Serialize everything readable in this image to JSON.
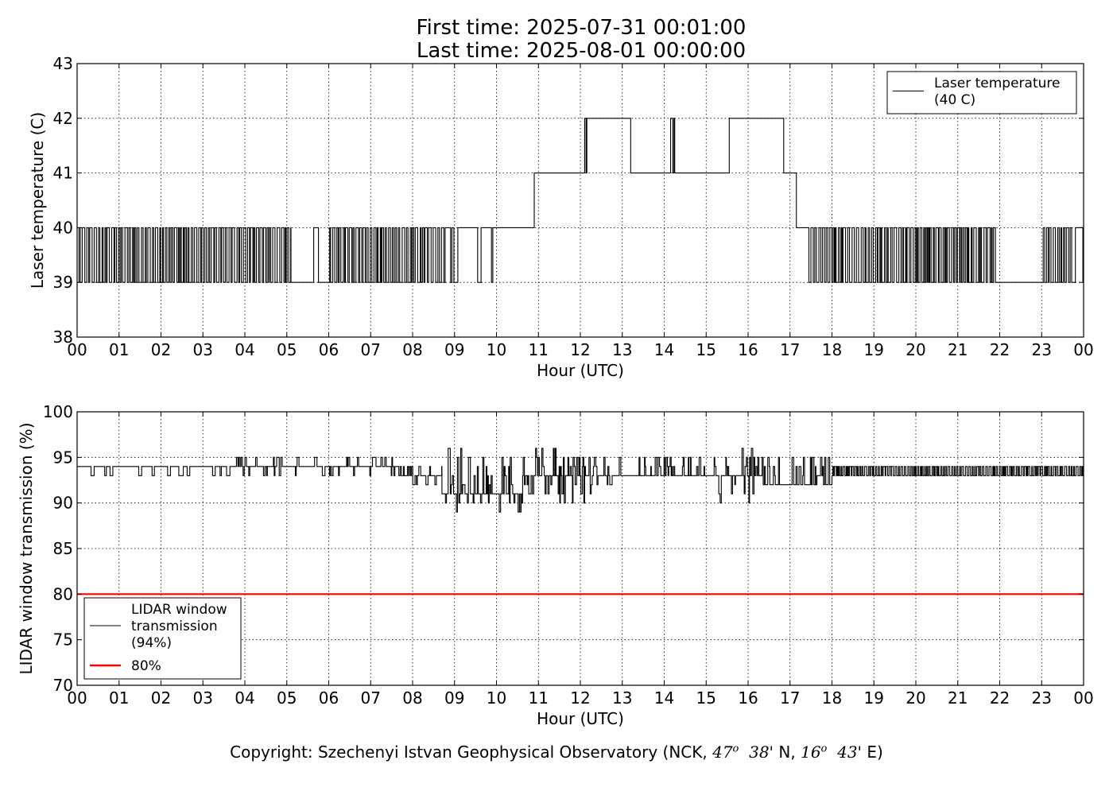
{
  "title_line1": "First time: 2025-07-31 00:01:00",
  "title_line2": "Last time: 2025-08-01 00:00:00",
  "footer": {
    "prefix": "Copyright: Szechenyi Istvan Geophysical Observatory (NCK, ",
    "lat_deg": "47",
    "lat_sup": "o",
    "lat_min": "38'",
    "lat_hem": " N, ",
    "lon_deg": "16",
    "lon_sup": "o",
    "lon_min": "43'",
    "lon_hem": " E)"
  },
  "colors": {
    "series": "#000000",
    "threshold": "#ff0000",
    "grid": "#000000"
  },
  "chart_data": [
    {
      "type": "line",
      "title": "",
      "xlabel": "Hour (UTC)",
      "ylabel": "Laser temperature (C)",
      "xlim": [
        0,
        24
      ],
      "ylim": [
        38,
        43
      ],
      "xticks": [
        "00",
        "01",
        "02",
        "03",
        "04",
        "05",
        "06",
        "07",
        "08",
        "09",
        "10",
        "11",
        "12",
        "13",
        "14",
        "15",
        "16",
        "17",
        "18",
        "19",
        "20",
        "21",
        "22",
        "23",
        "00"
      ],
      "yticks": [
        "38",
        "39",
        "40",
        "41",
        "42",
        "43"
      ],
      "grid": true,
      "legend_position": "top-right",
      "legend": [
        {
          "label_lines": [
            "Laser temperature",
            "(40 C)"
          ],
          "color": "#000000"
        }
      ],
      "series": [
        {
          "name": "Laser temperature (40 C)",
          "color": "#000000",
          "segments": [
            {
              "x_start": 0.0,
              "x_end": 5.1,
              "values": [
                39,
                40
              ],
              "mode": "toggle"
            },
            {
              "x_start": 5.1,
              "x_end": 6.0,
              "values": [
                39,
                40
              ],
              "mode": "sparse"
            },
            {
              "x_start": 6.0,
              "x_end": 8.8,
              "values": [
                39,
                40
              ],
              "mode": "toggle"
            },
            {
              "x_start": 8.8,
              "x_end": 10.3,
              "values": [
                40,
                39
              ],
              "mode": "sparse"
            },
            {
              "x_start": 10.3,
              "x_end": 10.9,
              "values": [
                40
              ],
              "mode": "flat"
            },
            {
              "x_start": 10.9,
              "x_end": 12.05,
              "values": [
                41
              ],
              "mode": "flat"
            },
            {
              "x_start": 12.05,
              "x_end": 12.2,
              "values": [
                41,
                42
              ],
              "mode": "toggle"
            },
            {
              "x_start": 12.2,
              "x_end": 13.2,
              "values": [
                42
              ],
              "mode": "flat"
            },
            {
              "x_start": 13.2,
              "x_end": 14.1,
              "values": [
                41
              ],
              "mode": "flat"
            },
            {
              "x_start": 14.1,
              "x_end": 14.25,
              "values": [
                41,
                42
              ],
              "mode": "toggle"
            },
            {
              "x_start": 14.25,
              "x_end": 15.55,
              "values": [
                41
              ],
              "mode": "flat"
            },
            {
              "x_start": 15.55,
              "x_end": 16.85,
              "values": [
                42
              ],
              "mode": "flat"
            },
            {
              "x_start": 16.85,
              "x_end": 17.15,
              "values": [
                41
              ],
              "mode": "flat"
            },
            {
              "x_start": 17.15,
              "x_end": 17.45,
              "values": [
                40
              ],
              "mode": "flat"
            },
            {
              "x_start": 17.45,
              "x_end": 21.9,
              "values": [
                39,
                40
              ],
              "mode": "toggle"
            },
            {
              "x_start": 21.9,
              "x_end": 23.0,
              "values": [
                39
              ],
              "mode": "flat"
            },
            {
              "x_start": 23.0,
              "x_end": 23.75,
              "values": [
                39,
                40
              ],
              "mode": "toggle"
            },
            {
              "x_start": 23.75,
              "x_end": 24.0,
              "values": [
                40,
                39
              ],
              "mode": "sparse"
            }
          ]
        }
      ]
    },
    {
      "type": "line",
      "title": "",
      "xlabel": "Hour (UTC)",
      "ylabel": "LIDAR window transmission (%)",
      "xlim": [
        0,
        24
      ],
      "ylim": [
        70,
        100
      ],
      "xticks": [
        "00",
        "01",
        "02",
        "03",
        "04",
        "05",
        "06",
        "07",
        "08",
        "09",
        "10",
        "11",
        "12",
        "13",
        "14",
        "15",
        "16",
        "17",
        "18",
        "19",
        "20",
        "21",
        "22",
        "23",
        "00"
      ],
      "yticks": [
        "70",
        "75",
        "80",
        "85",
        "90",
        "95",
        "100"
      ],
      "grid": true,
      "legend_position": "bottom-left",
      "legend": [
        {
          "label_lines": [
            "LIDAR window",
            "transmission",
            "(94%)"
          ],
          "color": "#000000"
        },
        {
          "label_lines": [
            "80%"
          ],
          "color": "#ff0000"
        }
      ],
      "series": [
        {
          "name": "LIDAR window transmission (94%)",
          "color": "#000000",
          "segments": [
            {
              "x_start": 0.0,
              "x_end": 3.8,
              "values": [
                94,
                93
              ],
              "mode": "sparse"
            },
            {
              "x_start": 3.8,
              "x_end": 7.8,
              "values": [
                94,
                93,
                95
              ],
              "mode": "noisy"
            },
            {
              "x_start": 7.8,
              "x_end": 8.7,
              "values": [
                93,
                92,
                94
              ],
              "mode": "noisy"
            },
            {
              "x_start": 8.7,
              "x_end": 10.6,
              "values": [
                89,
                95,
                91,
                96
              ],
              "mode": "noisy_wide"
            },
            {
              "x_start": 10.6,
              "x_end": 12.8,
              "values": [
                90,
                96,
                93,
                95
              ],
              "mode": "noisy_wide"
            },
            {
              "x_start": 12.8,
              "x_end": 15.3,
              "values": [
                93,
                95,
                94
              ],
              "mode": "noisy"
            },
            {
              "x_start": 15.3,
              "x_end": 16.3,
              "values": [
                90,
                96,
                93,
                95
              ],
              "mode": "noisy_wide"
            },
            {
              "x_start": 16.3,
              "x_end": 18.0,
              "values": [
                92,
                95,
                93,
                94
              ],
              "mode": "noisy"
            },
            {
              "x_start": 18.0,
              "x_end": 24.0,
              "values": [
                93,
                94
              ],
              "mode": "toggle"
            }
          ]
        },
        {
          "name": "80%",
          "color": "#ff0000",
          "x": [
            0,
            24
          ],
          "y": [
            80,
            80
          ]
        }
      ]
    }
  ]
}
